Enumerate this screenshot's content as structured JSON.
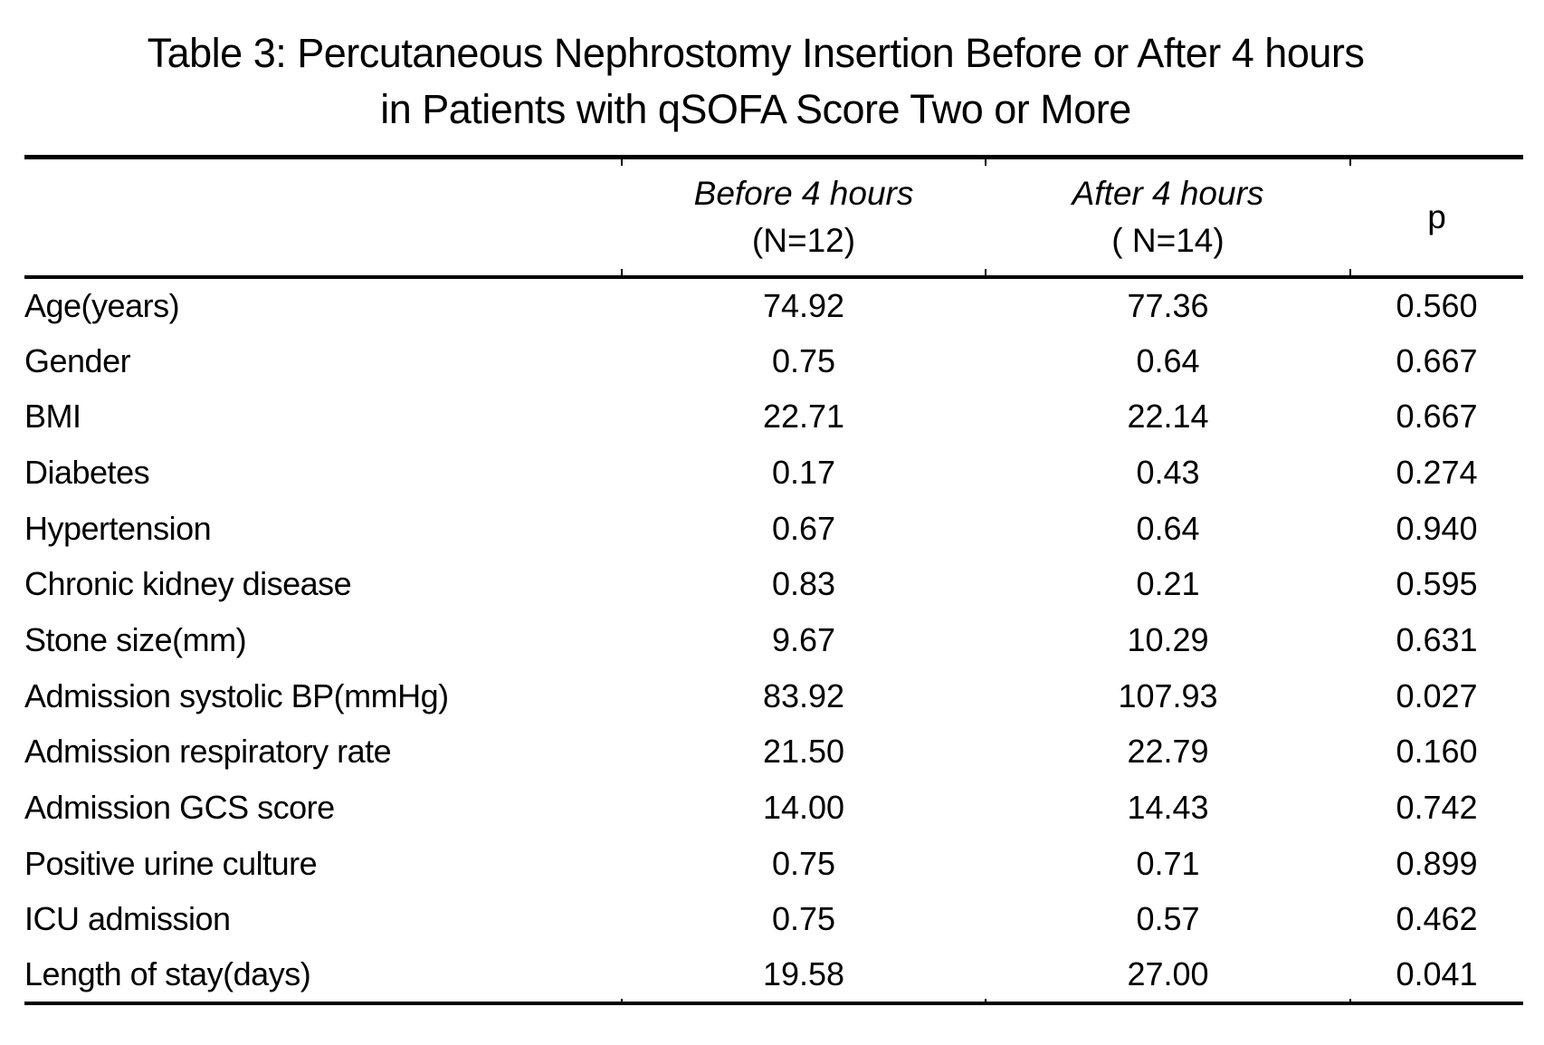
{
  "title": {
    "line1": "Table 3: Percutaneous Nephrostomy Insertion Before or After 4 hours",
    "line2": "in Patients with qSOFA Score Two or More"
  },
  "table": {
    "header": {
      "before": {
        "title": "Before 4 hours",
        "n": "(N=12)"
      },
      "after": {
        "title": "After 4 hours",
        "n": "( N=14)"
      },
      "p_label": "p"
    },
    "rows": [
      {
        "label": "Age(years)",
        "before": "74.92",
        "after": "77.36",
        "p": "0.560"
      },
      {
        "label": "Gender",
        "before": "0.75",
        "after": "0.64",
        "p": "0.667"
      },
      {
        "label": "BMI",
        "before": "22.71",
        "after": "22.14",
        "p": "0.667"
      },
      {
        "label": "Diabetes",
        "before": "0.17",
        "after": "0.43",
        "p": "0.274"
      },
      {
        "label": "Hypertension",
        "before": "0.67",
        "after": "0.64",
        "p": "0.940"
      },
      {
        "label": "Chronic kidney disease",
        "before": "0.83",
        "after": "0.21",
        "p": "0.595"
      },
      {
        "label": "Stone size(mm)",
        "before": "9.67",
        "after": "10.29",
        "p": "0.631"
      },
      {
        "label": "Admission systolic BP(mmHg)",
        "before": "83.92",
        "after": "107.93",
        "p": "0.027"
      },
      {
        "label": "Admission respiratory rate",
        "before": "21.50",
        "after": "22.79",
        "p": "0.160"
      },
      {
        "label": "Admission GCS score",
        "before": "14.00",
        "after": "14.43",
        "p": "0.742"
      },
      {
        "label": "Positive urine culture",
        "before": "0.75",
        "after": "0.71",
        "p": "0.899"
      },
      {
        "label": "ICU admission",
        "before": "0.75",
        "after": "0.57",
        "p": "0.462"
      },
      {
        "label": "Length of stay(days)",
        "before": "19.58",
        "after": "27.00",
        "p": "0.041"
      }
    ]
  },
  "colors": {
    "text": "#000000",
    "background": "#ffffff",
    "rule": "#000000"
  }
}
